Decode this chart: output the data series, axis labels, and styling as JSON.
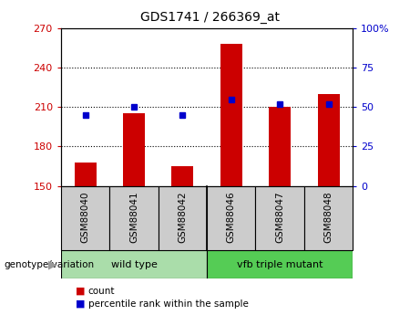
{
  "title": "GDS1741 / 266369_at",
  "categories": [
    "GSM88040",
    "GSM88041",
    "GSM88042",
    "GSM88046",
    "GSM88047",
    "GSM88048"
  ],
  "count_values": [
    168,
    205,
    165,
    258,
    210,
    220
  ],
  "percentile_values": [
    45,
    50,
    45,
    55,
    52,
    52
  ],
  "ylim_left": [
    150,
    270
  ],
  "ylim_right": [
    0,
    100
  ],
  "yticks_left": [
    150,
    180,
    210,
    240,
    270
  ],
  "yticks_right": [
    0,
    25,
    50,
    75,
    100
  ],
  "bar_color": "#cc0000",
  "dot_color": "#0000cc",
  "bar_bottom": 150,
  "groups": [
    {
      "label": "wild type",
      "indices": [
        0,
        1,
        2
      ],
      "color": "#aaddaa"
    },
    {
      "label": "vfb triple mutant",
      "indices": [
        3,
        4,
        5
      ],
      "color": "#55cc55"
    }
  ],
  "group_label_prefix": "genotype/variation",
  "legend_items": [
    {
      "color": "#cc0000",
      "label": "count"
    },
    {
      "color": "#0000cc",
      "label": "percentile rank within the sample"
    }
  ],
  "grid_color": "#000000",
  "tick_label_color_left": "#cc0000",
  "tick_label_color_right": "#0000cc",
  "xlabel_area_color": "#cccccc",
  "bg_color": "#ffffff"
}
